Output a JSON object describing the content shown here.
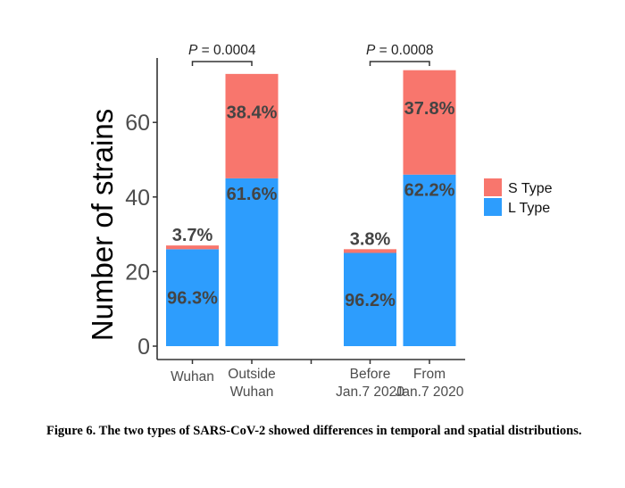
{
  "chart_data": {
    "type": "bar",
    "stacked": true,
    "title": "",
    "xlabel": "",
    "ylabel": "Number of strains",
    "ylim": [
      0,
      75
    ],
    "yticks": [
      0,
      20,
      40,
      60
    ],
    "categories": [
      "Wuhan",
      "Outside\nWuhan",
      "",
      "Before\nJan.7 2020",
      "From\nJan.7 2020"
    ],
    "category_lines": [
      [
        "Wuhan"
      ],
      [
        "Outside",
        "Wuhan"
      ],
      [],
      [
        "Before",
        "Jan.7 2020"
      ],
      [
        "From",
        "Jan.7 2020"
      ]
    ],
    "series": [
      {
        "name": "L Type",
        "color": "#2D9DFD",
        "values": [
          26,
          45,
          null,
          25,
          46
        ],
        "labels": [
          "96.3%",
          "61.6%",
          "",
          "96.2%",
          "62.2%"
        ]
      },
      {
        "name": "S Type",
        "color": "#F8766D",
        "values": [
          1,
          28,
          null,
          1,
          28
        ],
        "labels": [
          "3.7%",
          "38.4%",
          "",
          "3.8%",
          "37.8%"
        ]
      }
    ],
    "legend": {
      "position": "right",
      "entries": [
        "S Type",
        "L Type"
      ]
    },
    "annotations": [
      {
        "from": 0,
        "to": 1,
        "p_symbol": "P",
        "text": " = 0.0004"
      },
      {
        "from": 3,
        "to": 4,
        "p_symbol": "P",
        "text": " = 0.0008"
      }
    ],
    "grid": false
  },
  "caption": "Figure 6. The two types of SARS-CoV-2 showed differences in temporal and spatial distributions."
}
